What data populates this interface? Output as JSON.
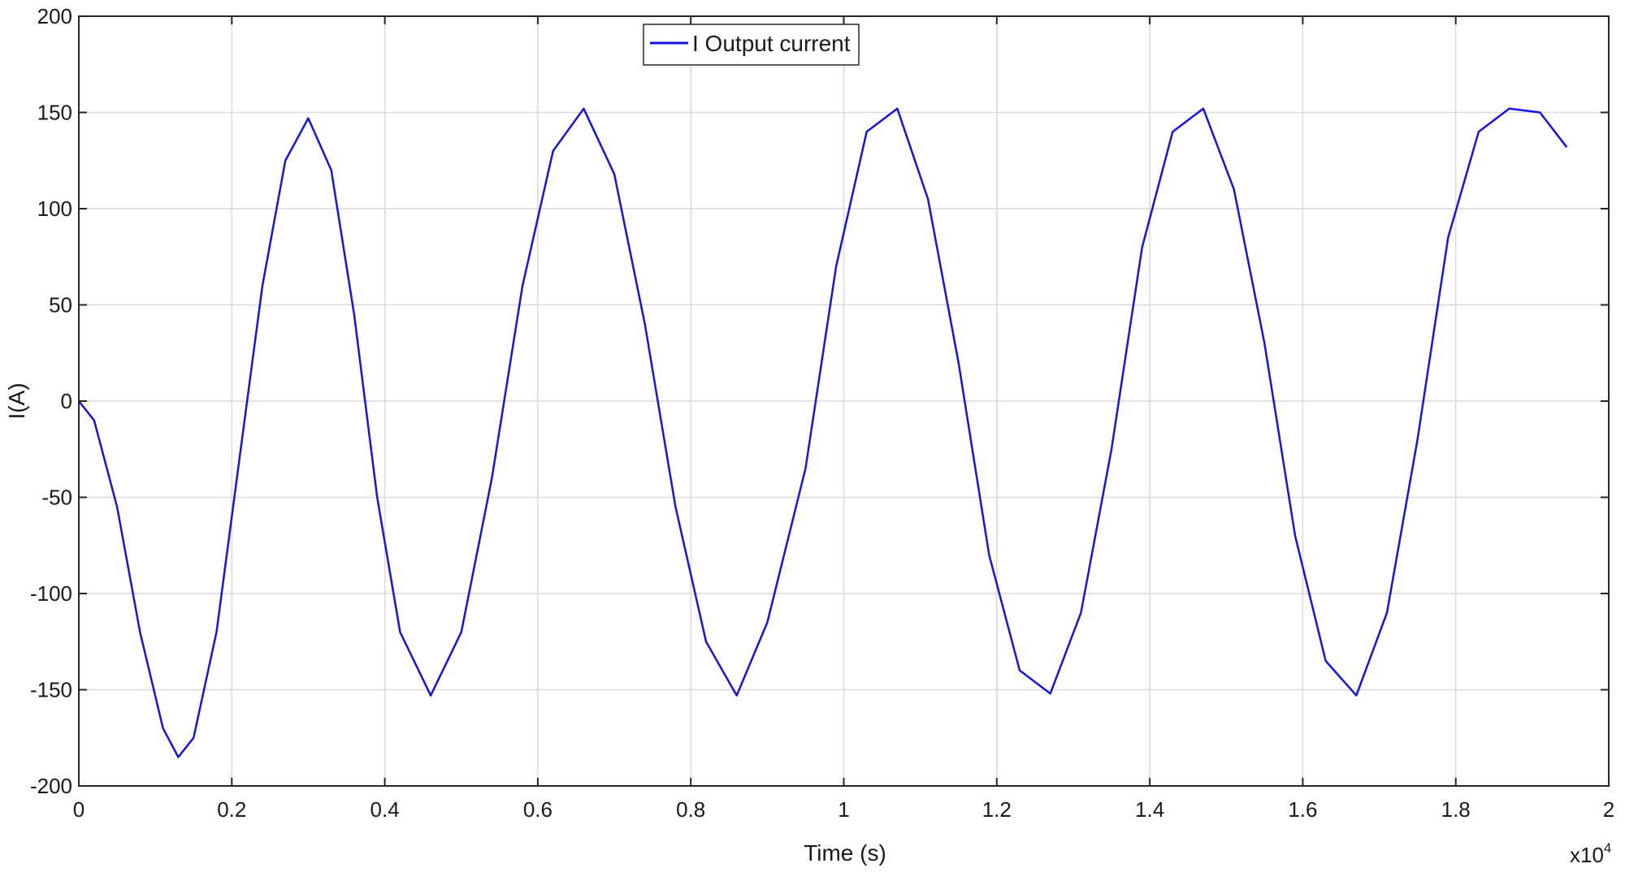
{
  "chart_data": {
    "type": "line",
    "title": "",
    "xlabel": "Time (s)",
    "ylabel": "I(A)",
    "x_exponent_label": "x10",
    "x_exponent_power": "4",
    "xlim": [
      0,
      2
    ],
    "ylim": [
      -200,
      200
    ],
    "xticks": [
      0,
      0.2,
      0.4,
      0.6,
      0.8,
      1,
      1.2,
      1.4,
      1.6,
      1.8,
      2
    ],
    "xtick_labels": [
      "0",
      "0.2",
      "0.4",
      "0.6",
      "0.8",
      "1",
      "1.2",
      "1.4",
      "1.6",
      "1.8",
      "2"
    ],
    "yticks": [
      200,
      150,
      100,
      50,
      0,
      -50,
      -100,
      -150,
      -200
    ],
    "ytick_labels": [
      "200",
      "150",
      "100",
      "50",
      "0",
      "-50",
      "-100",
      "-150",
      "-200"
    ],
    "grid": true,
    "legend_position": "top-center",
    "series": [
      {
        "name": "I Output current",
        "color": "#1414e6",
        "x": [
          0,
          0.02,
          0.05,
          0.08,
          0.11,
          0.13,
          0.15,
          0.18,
          0.21,
          0.24,
          0.27,
          0.3,
          0.33,
          0.36,
          0.39,
          0.42,
          0.46,
          0.5,
          0.54,
          0.58,
          0.62,
          0.66,
          0.7,
          0.74,
          0.78,
          0.82,
          0.86,
          0.9,
          0.95,
          0.99,
          1.03,
          1.07,
          1.11,
          1.15,
          1.19,
          1.23,
          1.27,
          1.31,
          1.35,
          1.39,
          1.43,
          1.47,
          1.51,
          1.55,
          1.59,
          1.63,
          1.67,
          1.71,
          1.75,
          1.79,
          1.83,
          1.87,
          1.91,
          1.945
        ],
        "y": [
          0,
          -10,
          -55,
          -120,
          -170,
          -185,
          -175,
          -120,
          -30,
          60,
          125,
          147,
          120,
          45,
          -50,
          -120,
          -153,
          -120,
          -40,
          60,
          130,
          152,
          118,
          40,
          -55,
          -125,
          -153,
          -115,
          -35,
          70,
          140,
          152,
          105,
          20,
          -80,
          -140,
          -152,
          -110,
          -25,
          80,
          140,
          152,
          110,
          30,
          -70,
          -135,
          -153,
          -110,
          -20,
          85,
          140,
          152,
          150,
          132
        ]
      }
    ]
  }
}
